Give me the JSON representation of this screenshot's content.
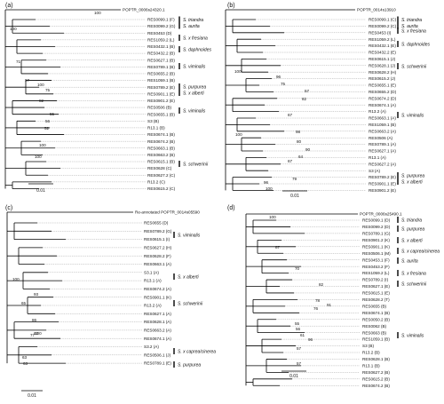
{
  "panels": [
    {
      "letter": "(a)",
      "root": "POPTR_0006s24320.1",
      "leaves": [
        "RES0099.1 (F)",
        "RES0099.2 (G)",
        "RES0453 (D)",
        "RES1059.2 (L)",
        "RES0432.1 (B)",
        "RES0432.2 (B)",
        "RES0627.1 (B)",
        "RES0789.1 (B)",
        "RES0655.2 (B)",
        "RES1059.1 (B)",
        "RES0789.2 (E)",
        "RES0901.1 (E)",
        "RES0901.2 (E)",
        "RES0506 (B)",
        "RES0655.1 (B)",
        "S3 (B)",
        "R13.1 (B)",
        "RES0674.1 (B)",
        "RES0674.2 (B)",
        "RES0663.1 (B)",
        "RES0663.2 (B)",
        "RES0615.1 (B)",
        "RES0628 (C)",
        "RES0627.2 (C)",
        "R13.2 (C)",
        "RES0615.2 (C)"
      ],
      "bootstrap": [
        "100",
        "100",
        "71",
        "97",
        "100",
        "75",
        "82",
        "55",
        "56",
        "52",
        "100",
        "100"
      ],
      "species": [
        "S. triandra",
        "S. aurita",
        "S. x fresiana",
        "S. daphnoides",
        "S. viminalis",
        "S. purpurea",
        "S. x alberti",
        "S. viminalis",
        "S. schwerinii"
      ],
      "scale": "0.01"
    },
    {
      "letter": "(b)",
      "root": "POPTR_0014s13910",
      "leaves": [
        "RES0099.1 (C)",
        "RES0099.2 (C)",
        "RES0453 (I)",
        "RES1059.2 (L)",
        "RES0432.1 (E)",
        "RES0432.2 (E)",
        "RES0615.1 (J)",
        "RES0628.1 (J)",
        "RES0628.2 (H)",
        "RES0615.2 (J)",
        "RES0655.1 (E)",
        "RES0655.2 (D)",
        "RES0674.2 (D)",
        "RES0674.1 (A)",
        "R13.2 (A)",
        "RES0663.1 (A)",
        "RES1059.1 (B)",
        "RES0663.2 (A)",
        "RES0506 (A)",
        "RES0789.1 (A)",
        "RES0627.1 (A)",
        "R13.1 (A)",
        "RES0627.2 (A)",
        "S3 (A)",
        "RES0789.2 (E)",
        "RES0901.1 (E)",
        "RES0901.2 (E)"
      ],
      "bootstrap": [
        "100",
        "96",
        "75",
        "57",
        "82",
        "67",
        "100",
        "98",
        "80",
        "90",
        "64",
        "67",
        "79",
        "96",
        "100"
      ],
      "species": [
        "S. triandra",
        "S. aurita",
        "S. x fresiana",
        "S. daphnoides",
        "S. schwerinii",
        "S. viminalis",
        "S. purpurea",
        "S. x alberti"
      ],
      "scale": "0.01"
    },
    {
      "letter": "(c)",
      "root": "Re-annotated POPTR_0014s05590",
      "leaves": [
        "RES0655 (D)",
        "RES0789.2 (G)",
        "RES0615.1 (I)",
        "RES0627.2 (H)",
        "RES0628.2 (F)",
        "RES0663.1 (A)",
        "S3.1 (A)",
        "R13.1 (A)",
        "RES0674.2 (A)",
        "RES0901.1 (K)",
        "R13.2 (A)",
        "RES0627.1 (A)",
        "RES0628.1 (A)",
        "RES0663.2 (A)",
        "RES0674.1 (A)",
        "S3.2 (A)",
        "RES0506.1 (J)",
        "RES0789.1 (E)"
      ],
      "bootstrap": [
        "100",
        "93",
        "65",
        "100",
        "63",
        "86",
        "63",
        "77",
        "63"
      ],
      "species": [
        "S. viminalis",
        "S. x alberti",
        "S. schwerinii",
        "S. x caprea/cinerea",
        "S. purpurea"
      ],
      "scale": "0.01"
    },
    {
      "letter": "(d)",
      "root": "POPTR_0006s25490.1",
      "leaves": [
        "RES0099.1 (D)",
        "RES0099.2 (D)",
        "RES0789.1 (G)",
        "RES0901.2 (K)",
        "RES0901.1 (K)",
        "RES0506.1 (M)",
        "RES0453.1 (F)",
        "RES0453.2 (F)",
        "RES1059.2 (L)",
        "RES0789.2 (I)",
        "RES0627.1 (E)",
        "RES0615.1 (E)",
        "RES0628.2 (T)",
        "RES0655 (B)",
        "RES0674.1 (B)",
        "RES0050.2 (B)",
        "RES0062 (B)",
        "RES0663 (B)",
        "RES1059.1 (B)",
        "S3 (B)",
        "R13.2 (B)",
        "RES0628.1 (B)",
        "R13.1 (B)",
        "RES0627.2 (B)",
        "RES0615.2 (B)",
        "RES0674.2 (B)"
      ],
      "bootstrap": [
        "100",
        "87",
        "70",
        "82",
        "91",
        "76",
        "78",
        "55",
        "56",
        "61",
        "57",
        "96",
        "57"
      ],
      "species": [
        "S. triandra",
        "S. purpurea",
        "S. x alberti",
        "S. x caprea/cinerea",
        "S. aurita",
        "S. x fresiana",
        "S. schwerinii",
        "S. viminalis"
      ],
      "scale": "0.01"
    }
  ]
}
